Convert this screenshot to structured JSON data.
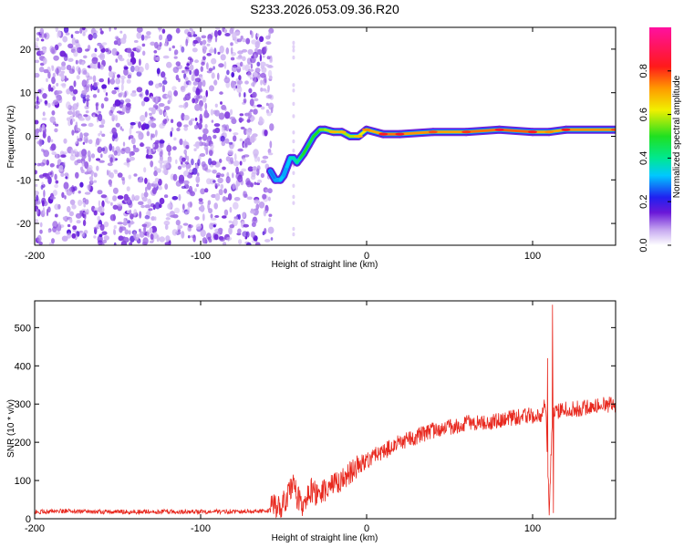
{
  "colors": {
    "snr_line": "#e8281e",
    "background": "#ffffff",
    "axis": "#000000"
  },
  "colorbar": {
    "label": "Normalized spectral amplitude",
    "range": [
      0.0,
      1.0
    ],
    "ticks": [
      "0.0",
      "0.2",
      "0.4",
      "0.6",
      "0.8"
    ],
    "tick_values": [
      0.0,
      0.2,
      0.4,
      0.6,
      0.8
    ],
    "colormap": "hsv-like: 0.0 white, 0.1 purple, 0.2 blue, 0.3 cyan, 0.45 green, 0.6 yellow, 0.8 red, 1.0 magenta"
  },
  "chart_data": [
    {
      "type": "heatmap",
      "title": "S233.2026.053.09.36.R20",
      "xlabel": "Height of straight line (km)",
      "ylabel": "Frequency (Hz)",
      "xlim": [
        -200,
        150
      ],
      "ylim": [
        -25,
        25
      ],
      "xticks": [
        -200,
        -100,
        0,
        100
      ],
      "yticks": [
        20,
        10,
        0,
        -10,
        -20
      ],
      "xtick_labels": [
        "-200",
        "-100",
        "0",
        "100"
      ],
      "ytick_labels": [
        "20",
        "10",
        "0",
        "-10",
        "-20"
      ],
      "noise_region_km": [
        -200,
        -57
      ],
      "signal_track": {
        "x": [
          -58,
          -55,
          -52,
          -50,
          -48,
          -46,
          -44,
          -42,
          -40,
          -38,
          -35,
          -32,
          -28,
          -25,
          -20,
          -15,
          -10,
          -5,
          0,
          10,
          20,
          40,
          60,
          80,
          100,
          110,
          120,
          150
        ],
        "freq_hz": [
          -8,
          -10,
          -10,
          -9,
          -7,
          -5,
          -5,
          -6,
          -5,
          -4,
          -2,
          0,
          1.5,
          1.5,
          1,
          1,
          0,
          0,
          1.5,
          0.5,
          0.5,
          1,
          1,
          1.5,
          1,
          1,
          1.5,
          1.5
        ],
        "amplitude": [
          0.3,
          0.25,
          0.35,
          0.3,
          0.3,
          0.35,
          0.4,
          0.35,
          0.45,
          0.5,
          0.5,
          0.45,
          0.55,
          0.55,
          0.6,
          0.6,
          0.55,
          0.6,
          0.65,
          0.75,
          0.75,
          0.7,
          0.72,
          0.78,
          0.75,
          0.65,
          0.75,
          0.7
        ]
      }
    },
    {
      "type": "line",
      "xlabel": "Height of straight line (km)",
      "ylabel": "SNR (10 * v/v)",
      "xlim": [
        -200,
        150
      ],
      "ylim": [
        0,
        570
      ],
      "xticks": [
        -200,
        -100,
        0,
        100
      ],
      "yticks": [
        0,
        100,
        200,
        300,
        400,
        500
      ],
      "xtick_labels": [
        "-200",
        "-100",
        "0",
        "100"
      ],
      "ytick_labels": [
        "0",
        "100",
        "200",
        "300",
        "400",
        "500"
      ],
      "series": [
        {
          "name": "SNR",
          "x": [
            -200,
            -180,
            -160,
            -140,
            -120,
            -100,
            -80,
            -60,
            -50,
            -45,
            -40,
            -37,
            -35,
            -30,
            -25,
            -20,
            -15,
            -10,
            -5,
            0,
            5,
            10,
            20,
            30,
            40,
            50,
            60,
            70,
            80,
            90,
            100,
            105,
            108,
            110,
            112,
            115,
            120,
            130,
            140,
            150
          ],
          "values": [
            18,
            20,
            18,
            18,
            19,
            18,
            19,
            20,
            40,
            90,
            45,
            25,
            80,
            60,
            75,
            90,
            100,
            120,
            140,
            150,
            165,
            175,
            200,
            215,
            230,
            240,
            250,
            252,
            255,
            265,
            270,
            275,
            300,
            20,
            285,
            280,
            285,
            290,
            298,
            300
          ],
          "spikes": [
            {
              "x": 109,
              "value": 420
            },
            {
              "x": 112,
              "value": 560
            },
            {
              "x": 112.5,
              "value": 15
            }
          ]
        }
      ]
    }
  ]
}
